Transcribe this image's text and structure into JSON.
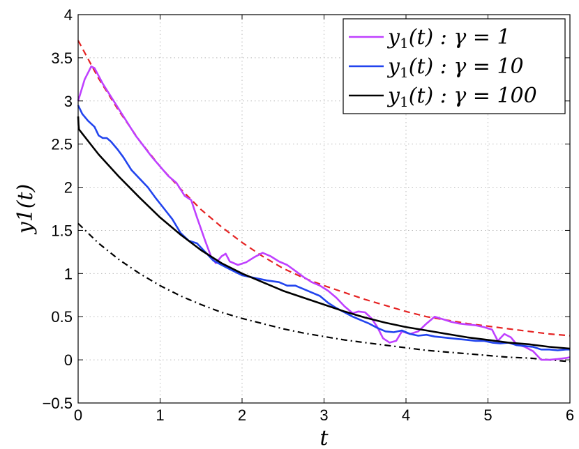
{
  "chart_data": {
    "type": "line",
    "title": "",
    "xlabel": "t",
    "ylabel": "y1(t)",
    "xlim": [
      0,
      6
    ],
    "ylim": [
      -0.5,
      4
    ],
    "xticks": [
      0,
      1,
      2,
      3,
      4,
      5,
      6
    ],
    "xtick_labels": [
      "0",
      "1",
      "2",
      "3",
      "4",
      "5",
      "6"
    ],
    "yticks": [
      -0.5,
      0,
      0.5,
      1,
      1.5,
      2,
      2.5,
      3,
      3.5,
      4
    ],
    "ytick_labels": [
      "−0.5",
      "0",
      "0.5",
      "1",
      "1.5",
      "2",
      "2.5",
      "3",
      "3.5",
      "4"
    ],
    "grid": true,
    "legend_position": "top-right",
    "series": [
      {
        "name": "y1(t) : γ = 1",
        "legend_var": "y",
        "legend_sub": "1",
        "legend_arg": "(t) : γ = 1",
        "color": "#bf40ff",
        "style": "solid",
        "x": [
          0,
          0.08,
          0.16,
          0.2,
          0.3,
          0.5,
          0.7,
          0.9,
          1.1,
          1.2,
          1.3,
          1.38,
          1.45,
          1.55,
          1.62,
          1.68,
          1.75,
          1.8,
          1.85,
          1.95,
          2.05,
          2.15,
          2.25,
          2.35,
          2.45,
          2.55,
          2.65,
          2.75,
          2.85,
          2.95,
          3.05,
          3.15,
          3.25,
          3.35,
          3.42,
          3.5,
          3.58,
          3.65,
          3.72,
          3.8,
          3.88,
          3.95,
          4.05,
          4.15,
          4.25,
          4.35,
          4.45,
          4.55,
          4.65,
          4.75,
          4.85,
          4.95,
          5.05,
          5.12,
          5.2,
          5.28,
          5.35,
          5.45,
          5.55,
          5.65,
          5.75,
          5.85,
          5.95,
          6.0
        ],
        "y": [
          3.0,
          3.25,
          3.4,
          3.38,
          3.2,
          2.9,
          2.6,
          2.35,
          2.13,
          2.05,
          1.9,
          1.85,
          1.65,
          1.38,
          1.2,
          1.12,
          1.2,
          1.23,
          1.14,
          1.1,
          1.13,
          1.19,
          1.24,
          1.2,
          1.14,
          1.1,
          1.03,
          0.96,
          0.9,
          0.86,
          0.8,
          0.72,
          0.62,
          0.54,
          0.56,
          0.55,
          0.48,
          0.38,
          0.25,
          0.2,
          0.22,
          0.33,
          0.3,
          0.33,
          0.42,
          0.5,
          0.47,
          0.44,
          0.42,
          0.41,
          0.4,
          0.38,
          0.35,
          0.22,
          0.3,
          0.26,
          0.18,
          0.15,
          0.1,
          0.0,
          0.0,
          0.01,
          0.02,
          0.03
        ]
      },
      {
        "name": "y1(t) : γ = 10",
        "legend_var": "y",
        "legend_sub": "1",
        "legend_arg": "(t) : γ = 10",
        "color": "#2244ee",
        "style": "solid",
        "x": [
          0,
          0.05,
          0.12,
          0.2,
          0.25,
          0.3,
          0.35,
          0.4,
          0.48,
          0.55,
          0.65,
          0.75,
          0.85,
          0.95,
          1.05,
          1.15,
          1.25,
          1.35,
          1.45,
          1.55,
          1.65,
          1.75,
          1.85,
          2.0,
          2.15,
          2.3,
          2.45,
          2.55,
          2.65,
          2.75,
          2.85,
          2.95,
          3.05,
          3.15,
          3.25,
          3.35,
          3.45,
          3.55,
          3.65,
          3.75,
          3.85,
          3.95,
          4.05,
          4.15,
          4.25,
          4.35,
          4.45,
          4.55,
          4.65,
          4.75,
          4.85,
          4.95,
          5.05,
          5.15,
          5.25,
          5.35,
          5.45,
          5.55,
          5.65,
          5.75,
          5.85,
          5.95,
          6.0
        ],
        "y": [
          2.95,
          2.85,
          2.77,
          2.7,
          2.6,
          2.57,
          2.57,
          2.53,
          2.44,
          2.35,
          2.2,
          2.1,
          2.0,
          1.87,
          1.75,
          1.63,
          1.47,
          1.38,
          1.35,
          1.25,
          1.15,
          1.1,
          1.05,
          0.98,
          0.95,
          0.92,
          0.9,
          0.86,
          0.86,
          0.82,
          0.78,
          0.74,
          0.66,
          0.6,
          0.55,
          0.5,
          0.46,
          0.42,
          0.37,
          0.33,
          0.32,
          0.34,
          0.3,
          0.28,
          0.29,
          0.27,
          0.26,
          0.25,
          0.24,
          0.23,
          0.22,
          0.22,
          0.2,
          0.19,
          0.2,
          0.17,
          0.16,
          0.15,
          0.12,
          0.12,
          0.11,
          0.12,
          0.12
        ]
      },
      {
        "name": "y1(t) : γ = 100",
        "legend_var": "y",
        "legend_sub": "1",
        "legend_arg": "(t) : γ = 100",
        "color": "#000000",
        "style": "solid",
        "x": [
          0,
          0.005,
          0.01,
          0.25,
          0.5,
          0.75,
          1.0,
          1.25,
          1.5,
          1.75,
          2.0,
          2.25,
          2.5,
          2.75,
          3.0,
          3.25,
          3.5,
          3.75,
          4.0,
          4.25,
          4.5,
          4.75,
          5.0,
          5.25,
          5.5,
          5.75,
          6.0
        ],
        "y": [
          2.82,
          2.72,
          2.67,
          2.38,
          2.12,
          1.88,
          1.65,
          1.45,
          1.27,
          1.12,
          1.0,
          0.9,
          0.8,
          0.72,
          0.64,
          0.56,
          0.49,
          0.43,
          0.38,
          0.34,
          0.3,
          0.26,
          0.23,
          0.2,
          0.18,
          0.15,
          0.13
        ]
      },
      {
        "name": "",
        "color": "#e52222",
        "style": "dashed",
        "x": [
          0,
          0.25,
          0.5,
          0.75,
          1.0,
          1.25,
          1.5,
          1.75,
          2.0,
          2.25,
          2.5,
          2.75,
          3.0,
          3.25,
          3.5,
          3.75,
          4.0,
          4.25,
          4.5,
          4.75,
          5.0,
          5.25,
          5.5,
          5.75,
          6.0
        ],
        "y": [
          3.7,
          3.26,
          2.88,
          2.54,
          2.24,
          1.98,
          1.74,
          1.54,
          1.36,
          1.2,
          1.06,
          0.95,
          0.86,
          0.78,
          0.7,
          0.63,
          0.56,
          0.5,
          0.46,
          0.42,
          0.39,
          0.36,
          0.33,
          0.3,
          0.28
        ]
      },
      {
        "name": "",
        "color": "#000000",
        "style": "dashdot",
        "x": [
          0,
          0.25,
          0.5,
          0.75,
          1.0,
          1.25,
          1.5,
          1.75,
          2.0,
          2.25,
          2.5,
          2.75,
          3.0,
          3.25,
          3.5,
          3.75,
          4.0,
          4.25,
          4.5,
          4.75,
          5.0,
          5.25,
          5.5,
          5.75,
          6.0
        ],
        "y": [
          1.58,
          1.35,
          1.16,
          1.0,
          0.86,
          0.74,
          0.64,
          0.55,
          0.48,
          0.42,
          0.36,
          0.31,
          0.27,
          0.23,
          0.2,
          0.17,
          0.14,
          0.11,
          0.09,
          0.07,
          0.05,
          0.03,
          0.02,
          0.0,
          -0.02
        ]
      }
    ]
  }
}
